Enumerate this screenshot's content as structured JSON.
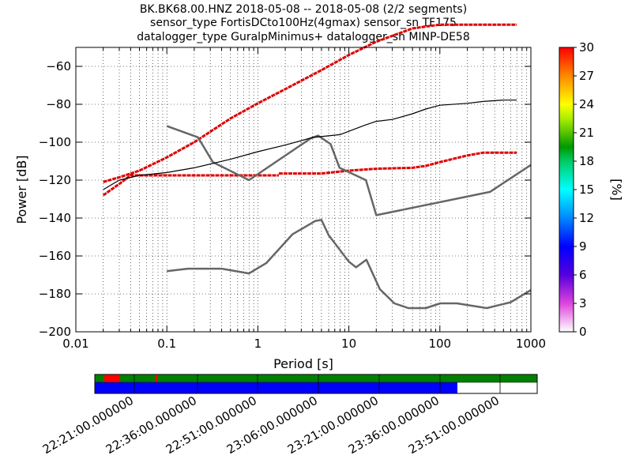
{
  "chart_data": {
    "type": "line",
    "title_lines": [
      "BK.BK68.00.HNZ   2018-05-08 -- 2018-05-08  (2/2 segments)",
      "sensor_type FortisDCto100Hz(4gmax) sensor_sn TF175",
      "datalogger_type GuralpMinimus+ datalogger_sn MINP-DE58"
    ],
    "xlabel": "Period [s]",
    "ylabel": "Power [dB]",
    "x_scale": "log",
    "xlim": [
      0.01,
      1000
    ],
    "ylim": [
      -200,
      -50
    ],
    "x_ticks": [
      "0.01",
      "0.1",
      "1",
      "10",
      "100",
      "1000"
    ],
    "y_ticks": [
      "−200",
      "−180",
      "−160",
      "−140",
      "−120",
      "−100",
      "−80",
      "−60"
    ],
    "y_tick_values": [
      -200,
      -180,
      -160,
      -140,
      -120,
      -100,
      -80,
      -60
    ],
    "grid": true,
    "colorbar": {
      "label": "[%]",
      "ticks": [
        "0",
        "3",
        "6",
        "9",
        "12",
        "15",
        "18",
        "21",
        "24",
        "27",
        "30"
      ],
      "range": [
        0,
        30
      ]
    },
    "series": [
      {
        "role": "noise-model-high",
        "color": "#666666",
        "x": [
          0.1,
          0.22,
          0.32,
          0.8,
          3.8,
          4.6,
          6.3,
          7.9,
          15.4,
          20,
          354.8,
          1000
        ],
        "y": [
          -91.5,
          -97.4,
          -110.5,
          -120,
          -98,
          -96.5,
          -101,
          -113.5,
          -120,
          -138.5,
          -126.2,
          -112
        ]
      },
      {
        "role": "noise-model-low",
        "color": "#666666",
        "x": [
          0.1,
          0.17,
          0.4,
          0.8,
          1.24,
          2.4,
          4.3,
          5,
          6,
          10,
          12,
          15.6,
          21.9,
          31.6,
          45,
          70,
          101,
          154,
          328,
          600,
          1000
        ],
        "y": [
          -168,
          -166.7,
          -166.7,
          -169.2,
          -163.7,
          -148.6,
          -141.5,
          -141,
          -149,
          -163,
          -166,
          -162,
          -177.5,
          -185,
          -187.5,
          -187.5,
          -185,
          -185,
          -187.5,
          -184.4,
          -178
        ]
      },
      {
        "role": "mode",
        "color": "#000000",
        "x": [
          0.02,
          0.03,
          0.05,
          0.1,
          0.2,
          0.5,
          1,
          2,
          4,
          8,
          15,
          20,
          30,
          50,
          70,
          100,
          200,
          300,
          500,
          700
        ],
        "y": [
          -125,
          -120,
          -117.5,
          -116,
          -113.5,
          -109,
          -105,
          -101.5,
          -97.5,
          -96,
          -91,
          -89,
          -88,
          -85,
          -82.5,
          -80.5,
          -79.5,
          -78.5,
          -77.8,
          -77.8
        ]
      }
    ],
    "psd_density_bands": [
      {
        "role": "upper",
        "color": "#dd0000",
        "x": [
          0.02,
          0.03,
          0.05,
          0.1,
          0.2,
          0.5,
          1,
          2,
          5,
          10,
          20,
          50,
          70,
          100,
          700
        ],
        "y": [
          -121,
          -118.5,
          -115,
          -108,
          -100,
          -87.5,
          -79.5,
          -72,
          -62,
          -54,
          -47,
          -40,
          -39,
          -38,
          -38
        ]
      },
      {
        "role": "lower-rising",
        "color": "#dd0000",
        "x": [
          0.02,
          0.03,
          0.04,
          0.1,
          0.3,
          1.7
        ],
        "y": [
          -128,
          -122,
          -117.5,
          -117.5,
          -117.5,
          -117.5
        ]
      },
      {
        "role": "lower-flat",
        "color": "#dd0000",
        "x": [
          1.7,
          5,
          10,
          20,
          50,
          70,
          100,
          200,
          300,
          700
        ],
        "y": [
          -116.5,
          -116.5,
          -115,
          -114,
          -113.5,
          -112.5,
          -110.5,
          -107,
          -105.5,
          -105.5
        ]
      }
    ],
    "time_axis": {
      "ticks": [
        "22:21:00.000000",
        "22:36:00.000000",
        "22:51:00.000000",
        "23:06:00.000000",
        "23:21:00.000000",
        "23:36:00.000000",
        "23:51:00.000000"
      ]
    }
  }
}
